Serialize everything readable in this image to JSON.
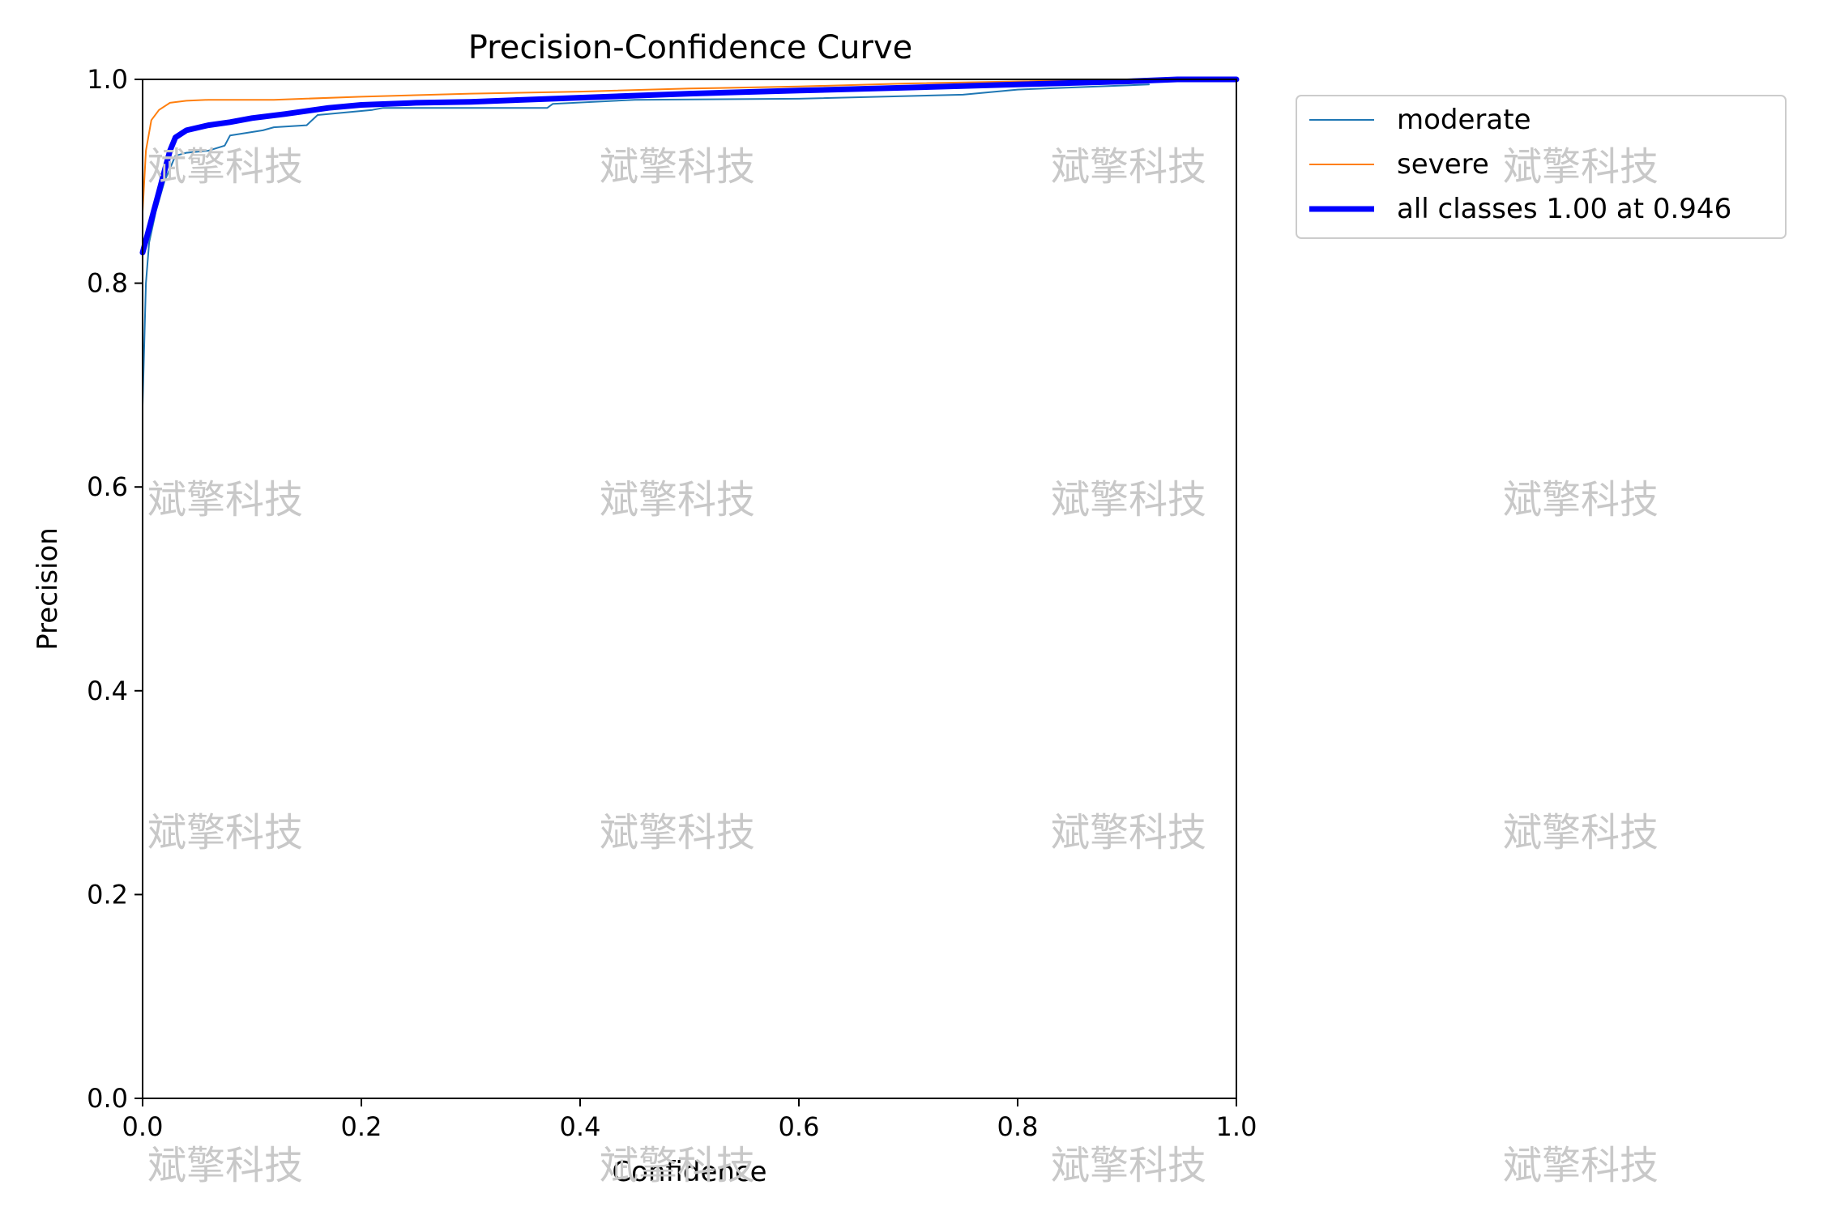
{
  "chart_data": {
    "type": "line",
    "title": "Precision-Confidence Curve",
    "xlabel": "Confidence",
    "ylabel": "Precision",
    "xlim": [
      0.0,
      1.0
    ],
    "ylim": [
      0.0,
      1.0
    ],
    "xticks": [
      "0.0",
      "0.2",
      "0.4",
      "0.6",
      "0.8",
      "1.0"
    ],
    "yticks": [
      "0.0",
      "0.2",
      "0.4",
      "0.6",
      "0.8",
      "1.0"
    ],
    "grid": false,
    "legend_position": "outside-top-right",
    "series": [
      {
        "name": "moderate",
        "color": "#1f77b4",
        "linewidth": "thin",
        "points": [
          [
            0.0,
            0.68
          ],
          [
            0.003,
            0.8
          ],
          [
            0.006,
            0.84
          ],
          [
            0.012,
            0.87
          ],
          [
            0.02,
            0.9
          ],
          [
            0.03,
            0.925
          ],
          [
            0.04,
            0.928
          ],
          [
            0.06,
            0.93
          ],
          [
            0.075,
            0.935
          ],
          [
            0.08,
            0.945
          ],
          [
            0.11,
            0.95
          ],
          [
            0.12,
            0.953
          ],
          [
            0.15,
            0.955
          ],
          [
            0.16,
            0.965
          ],
          [
            0.21,
            0.97
          ],
          [
            0.22,
            0.972
          ],
          [
            0.3,
            0.972
          ],
          [
            0.37,
            0.972
          ],
          [
            0.375,
            0.976
          ],
          [
            0.45,
            0.98
          ],
          [
            0.6,
            0.981
          ],
          [
            0.75,
            0.985
          ],
          [
            0.8,
            0.99
          ],
          [
            0.92,
            0.995
          ]
        ]
      },
      {
        "name": "severe",
        "color": "#ff7f0e",
        "linewidth": "thin",
        "points": [
          [
            0.0,
            0.87
          ],
          [
            0.003,
            0.93
          ],
          [
            0.008,
            0.96
          ],
          [
            0.015,
            0.97
          ],
          [
            0.025,
            0.977
          ],
          [
            0.04,
            0.979
          ],
          [
            0.06,
            0.98
          ],
          [
            0.12,
            0.98
          ],
          [
            0.2,
            0.983
          ],
          [
            0.3,
            0.986
          ],
          [
            0.4,
            0.988
          ],
          [
            0.5,
            0.991
          ],
          [
            0.6,
            0.993
          ],
          [
            0.7,
            0.996
          ],
          [
            0.8,
            0.998
          ],
          [
            0.9,
            1.0
          ],
          [
            1.0,
            1.0
          ]
        ]
      },
      {
        "name": "all classes 1.00 at 0.946",
        "color": "#0000ff",
        "linewidth": "thick",
        "points": [
          [
            0.0,
            0.83
          ],
          [
            0.005,
            0.85
          ],
          [
            0.01,
            0.87
          ],
          [
            0.015,
            0.89
          ],
          [
            0.02,
            0.91
          ],
          [
            0.025,
            0.93
          ],
          [
            0.03,
            0.943
          ],
          [
            0.04,
            0.95
          ],
          [
            0.06,
            0.955
          ],
          [
            0.08,
            0.958
          ],
          [
            0.1,
            0.962
          ],
          [
            0.13,
            0.966
          ],
          [
            0.17,
            0.972
          ],
          [
            0.2,
            0.975
          ],
          [
            0.25,
            0.977
          ],
          [
            0.3,
            0.978
          ],
          [
            0.4,
            0.982
          ],
          [
            0.5,
            0.986
          ],
          [
            0.6,
            0.989
          ],
          [
            0.7,
            0.992
          ],
          [
            0.8,
            0.995
          ],
          [
            0.9,
            0.998
          ],
          [
            0.946,
            1.0
          ],
          [
            1.0,
            1.0
          ]
        ]
      }
    ]
  },
  "watermark": {
    "text": "斌擎科技"
  }
}
